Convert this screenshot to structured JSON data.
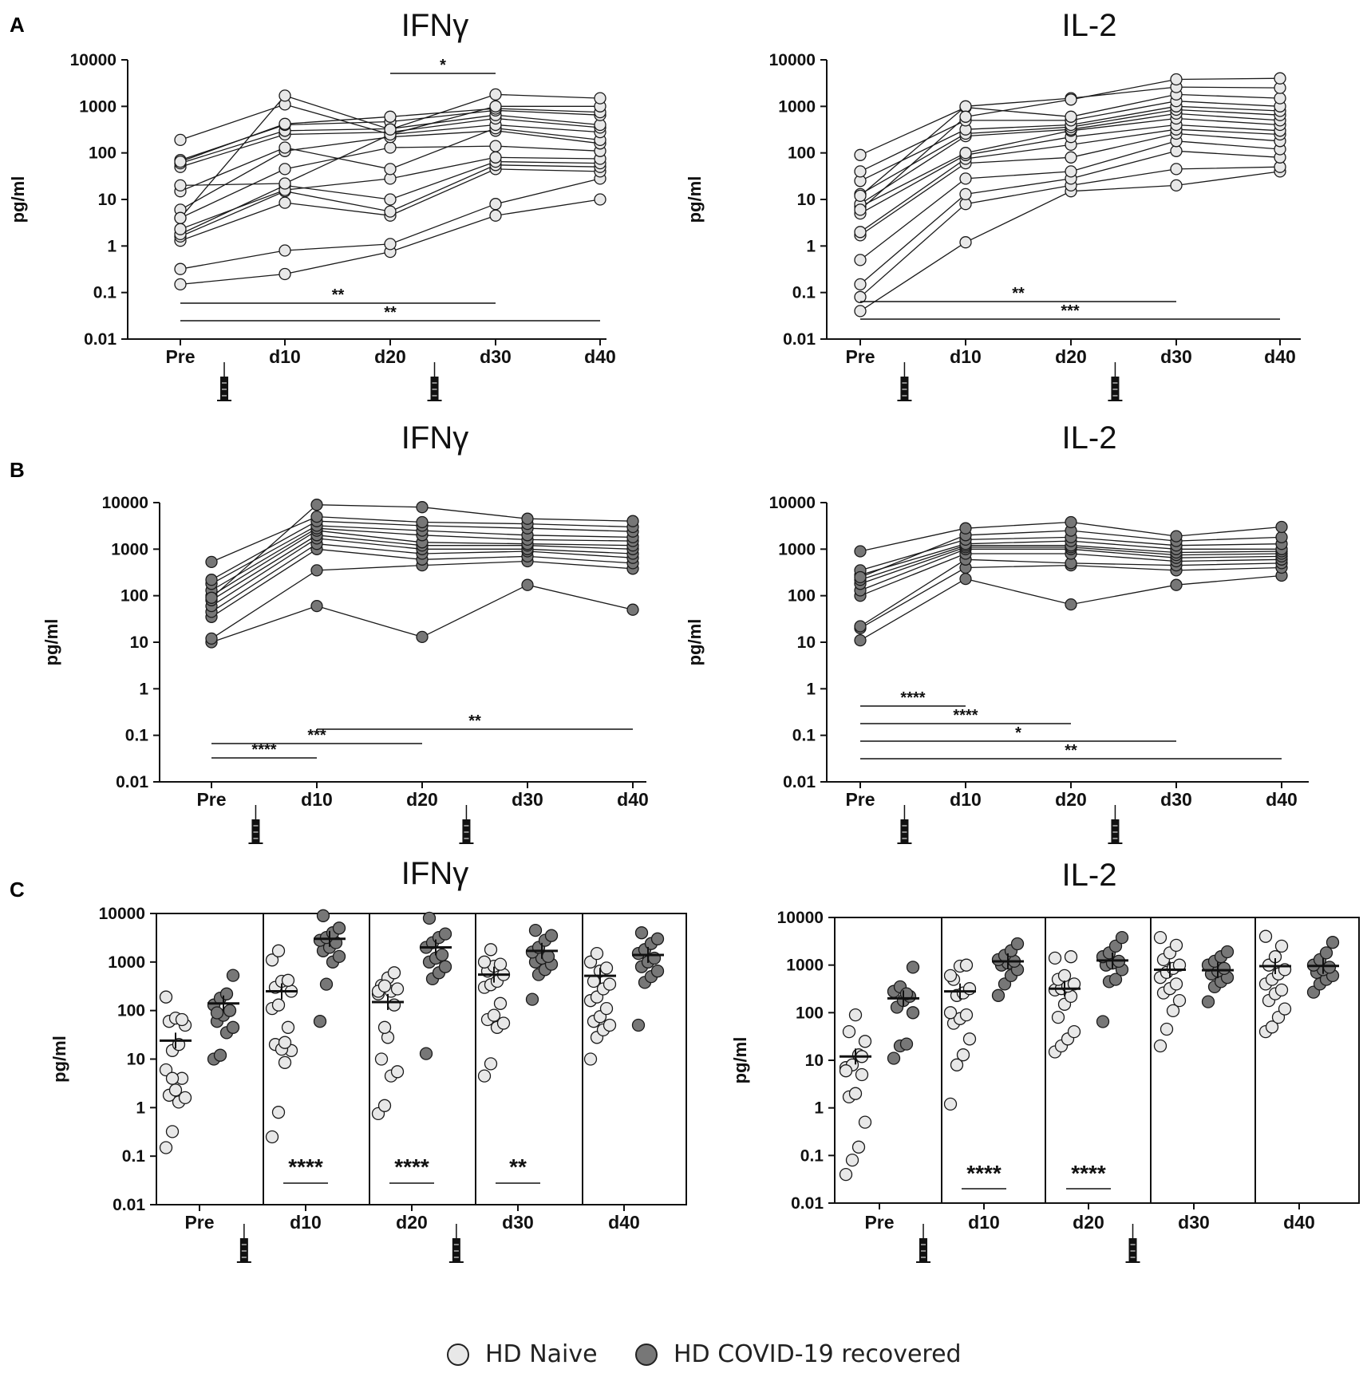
{
  "panel_labels": [
    "A",
    "B",
    "C"
  ],
  "x_categories": [
    "Pre",
    "d10",
    "d20",
    "d30",
    "d40"
  ],
  "colors": {
    "naive": "#e8e8e8",
    "recovered": "#777777",
    "stroke": "#1a1a1a"
  },
  "icons": {
    "vaccine": "syringe-icon"
  },
  "legend": {
    "naive_label": "HD Naive",
    "recovered_label": "HD COVID-19 recovered"
  },
  "chart_data": [
    {
      "id": "A-IFNg",
      "panel": "A",
      "type": "line",
      "title": "IFNγ",
      "ylabel": "pg/ml",
      "yscale": "log",
      "ylim": [
        0.01,
        10000
      ],
      "y_ticks": [
        "0.01",
        "0.1",
        "1",
        "10",
        "100",
        "1000",
        "10000"
      ],
      "categories": [
        "Pre",
        "d10",
        "d20",
        "d30",
        "d40"
      ],
      "group": "HD Naive",
      "vaccine_after": [
        "Pre",
        "d20"
      ],
      "series": [
        [
          0.15,
          0.25,
          0.75,
          4.5,
          10
        ],
        [
          0.32,
          0.8,
          1.1,
          8,
          28
        ],
        [
          1.3,
          8.5,
          4.5,
          45,
          40
        ],
        [
          1.6,
          15,
          5.5,
          55,
          50
        ],
        [
          1.8,
          20,
          10,
          65,
          60
        ],
        [
          2.3,
          16,
          28,
          80,
          75
        ],
        [
          4,
          45,
          130,
          140,
          110
        ],
        [
          6,
          110,
          220,
          300,
          160
        ],
        [
          15,
          130,
          45,
          340,
          190
        ],
        [
          20,
          22,
          250,
          400,
          280
        ],
        [
          50,
          250,
          280,
          550,
          350
        ],
        [
          60,
          300,
          330,
          650,
          400
        ],
        [
          70,
          400,
          470,
          820,
          650
        ],
        [
          65,
          420,
          600,
          900,
          750
        ],
        [
          190,
          1100,
          250,
          1000,
          1000
        ],
        [
          4,
          1700,
          320,
          1800,
          1500
        ]
      ],
      "significance": [
        {
          "from": "Pre",
          "to": "d30",
          "label": "**"
        },
        {
          "from": "Pre",
          "to": "d40",
          "label": "**"
        },
        {
          "from": "d20",
          "to": "d30",
          "label": "*"
        }
      ]
    },
    {
      "id": "A-IL2",
      "panel": "A",
      "type": "line",
      "title": "IL-2",
      "ylabel": "pg/ml",
      "yscale": "log",
      "ylim": [
        0.01,
        10000
      ],
      "y_ticks": [
        "0.01",
        "0.1",
        "1",
        "10",
        "100",
        "1000",
        "10000"
      ],
      "categories": [
        "Pre",
        "d10",
        "d20",
        "d30",
        "d40"
      ],
      "group": "HD Naive",
      "vaccine_after": [
        "Pre",
        "d20"
      ],
      "series": [
        [
          0.04,
          1.2,
          15,
          20,
          40
        ],
        [
          0.08,
          8,
          20,
          45,
          50
        ],
        [
          0.15,
          13,
          28,
          110,
          80
        ],
        [
          0.5,
          28,
          40,
          180,
          120
        ],
        [
          1.7,
          60,
          80,
          260,
          180
        ],
        [
          2,
          75,
          150,
          320,
          250
        ],
        [
          5,
          90,
          220,
          400,
          300
        ],
        [
          7,
          100,
          300,
          550,
          400
        ],
        [
          8,
          230,
          320,
          700,
          500
        ],
        [
          13,
          260,
          360,
          850,
          650
        ],
        [
          25,
          320,
          400,
          1000,
          800
        ],
        [
          40,
          500,
          500,
          1300,
          1000
        ],
        [
          90,
          950,
          600,
          1800,
          1500
        ],
        [
          12,
          1000,
          1500,
          2600,
          2500
        ],
        [
          6,
          600,
          1400,
          3800,
          4000
        ]
      ],
      "significance": [
        {
          "from": "Pre",
          "to": "d30",
          "label": "**"
        },
        {
          "from": "Pre",
          "to": "d40",
          "label": "***"
        }
      ]
    },
    {
      "id": "B-IFNg",
      "panel": "B",
      "type": "line",
      "title": "IFNγ",
      "ylabel": "pg/ml",
      "yscale": "log",
      "ylim": [
        0.01,
        10000
      ],
      "y_ticks": [
        "0.01",
        "0.1",
        "1",
        "10",
        "100",
        "1000",
        "10000"
      ],
      "categories": [
        "Pre",
        "d10",
        "d20",
        "d30",
        "d40"
      ],
      "group": "HD COVID-19 recovered",
      "vaccine_after": [
        "Pre",
        "d20"
      ],
      "series": [
        [
          10,
          60,
          13,
          170,
          50
        ],
        [
          12,
          350,
          450,
          550,
          380
        ],
        [
          35,
          1000,
          600,
          700,
          500
        ],
        [
          45,
          1300,
          800,
          900,
          650
        ],
        [
          60,
          1700,
          1000,
          1000,
          800
        ],
        [
          80,
          2000,
          1200,
          1200,
          1000
        ],
        [
          100,
          2500,
          1400,
          1300,
          1200
        ],
        [
          130,
          2800,
          2000,
          1600,
          1500
        ],
        [
          180,
          3200,
          2500,
          2000,
          1800
        ],
        [
          220,
          4000,
          3200,
          2800,
          2400
        ],
        [
          530,
          5000,
          3800,
          3500,
          3000
        ],
        [
          90,
          9000,
          8000,
          4500,
          4000
        ]
      ],
      "significance": [
        {
          "from": "Pre",
          "to": "d10",
          "label": "****"
        },
        {
          "from": "Pre",
          "to": "d20",
          "label": "***"
        },
        {
          "from": "d10",
          "to": "d40",
          "label": "**"
        }
      ]
    },
    {
      "id": "B-IL2",
      "panel": "B",
      "type": "line",
      "title": "IL-2",
      "ylabel": "pg/ml",
      "yscale": "log",
      "ylim": [
        0.01,
        10000
      ],
      "y_ticks": [
        "0.01",
        "0.1",
        "1",
        "10",
        "100",
        "1000",
        "10000"
      ],
      "categories": [
        "Pre",
        "d10",
        "d20",
        "d30",
        "d40"
      ],
      "group": "HD COVID-19 recovered",
      "vaccine_after": [
        "Pre",
        "d20"
      ],
      "series": [
        [
          11,
          230,
          65,
          170,
          270
        ],
        [
          20,
          400,
          450,
          350,
          400
        ],
        [
          22,
          600,
          500,
          450,
          500
        ],
        [
          100,
          800,
          800,
          550,
          600
        ],
        [
          130,
          1000,
          1000,
          650,
          700
        ],
        [
          180,
          1100,
          1100,
          750,
          800
        ],
        [
          220,
          1200,
          1200,
          850,
          900
        ],
        [
          280,
          1300,
          1500,
          1000,
          1000
        ],
        [
          350,
          1600,
          1800,
          1200,
          1300
        ],
        [
          250,
          2000,
          2500,
          1500,
          1800
        ],
        [
          900,
          2800,
          3800,
          1900,
          3000
        ]
      ],
      "significance": [
        {
          "from": "Pre",
          "to": "d10",
          "label": "****"
        },
        {
          "from": "Pre",
          "to": "d20",
          "label": "****"
        },
        {
          "from": "Pre",
          "to": "d30",
          "label": "*"
        },
        {
          "from": "Pre",
          "to": "d40",
          "label": "**"
        }
      ]
    },
    {
      "id": "C-IFNg",
      "panel": "C",
      "type": "scatter",
      "title": "IFNγ",
      "ylabel": "pg/ml",
      "yscale": "log",
      "ylim": [
        0.01,
        10000
      ],
      "y_ticks": [
        "0.01",
        "0.1",
        "1",
        "10",
        "100",
        "1000",
        "10000"
      ],
      "categories": [
        "Pre",
        "d10",
        "d20",
        "d30",
        "d40"
      ],
      "vaccine_after": [
        "Pre",
        "d20"
      ],
      "groups": [
        {
          "name": "HD Naive",
          "values": [
            [
              0.15,
              0.32,
              1.3,
              1.6,
              1.8,
              2.3,
              4,
              6,
              15,
              20,
              50,
              60,
              70,
              65,
              190,
              4
            ],
            [
              0.25,
              0.8,
              8.5,
              15,
              20,
              16,
              45,
              110,
              130,
              22,
              250,
              300,
              400,
              420,
              1100,
              1700
            ],
            [
              0.75,
              1.1,
              4.5,
              5.5,
              10,
              28,
              130,
              220,
              45,
              250,
              280,
              330,
              470,
              600,
              250,
              320
            ],
            [
              4.5,
              8,
              45,
              55,
              65,
              80,
              140,
              300,
              340,
              400,
              550,
              650,
              820,
              900,
              1000,
              1800
            ],
            [
              10,
              28,
              40,
              50,
              60,
              75,
              110,
              160,
              190,
              280,
              350,
              400,
              650,
              750,
              1000,
              1500
            ]
          ],
          "means": [
            24,
            250,
            150,
            550,
            520
          ]
        },
        {
          "name": "HD COVID-19 recovered",
          "values": [
            [
              10,
              12,
              35,
              45,
              60,
              80,
              100,
              130,
              180,
              220,
              530,
              90
            ],
            [
              60,
              350,
              1000,
              1300,
              1700,
              2000,
              2500,
              2800,
              3200,
              4000,
              5000,
              9000
            ],
            [
              13,
              450,
              600,
              800,
              1000,
              1200,
              1400,
              2000,
              2500,
              3200,
              3800,
              8000
            ],
            [
              170,
              550,
              700,
              900,
              1000,
              1200,
              1300,
              1600,
              2000,
              2800,
              3500,
              4500
            ],
            [
              50,
              380,
              500,
              650,
              800,
              1000,
              1200,
              1500,
              1800,
              2400,
              3000,
              4000
            ]
          ],
          "means": [
            140,
            3000,
            2000,
            1700,
            1400
          ]
        }
      ],
      "significance": [
        {
          "at": "d10",
          "label": "****"
        },
        {
          "at": "d20",
          "label": "****"
        },
        {
          "at": "d30",
          "label": "**"
        }
      ]
    },
    {
      "id": "C-IL2",
      "panel": "C",
      "type": "scatter",
      "title": "IL-2",
      "ylabel": "pg/ml",
      "yscale": "log",
      "ylim": [
        0.01,
        10000
      ],
      "y_ticks": [
        "0.01",
        "0.1",
        "1",
        "10",
        "100",
        "1000",
        "10000"
      ],
      "categories": [
        "Pre",
        "d10",
        "d20",
        "d30",
        "d40"
      ],
      "vaccine_after": [
        "Pre",
        "d20"
      ],
      "groups": [
        {
          "name": "HD Naive",
          "values": [
            [
              0.04,
              0.08,
              0.15,
              0.5,
              1.7,
              2,
              5,
              7,
              8,
              13,
              25,
              40,
              90,
              12,
              6
            ],
            [
              1.2,
              8,
              13,
              28,
              60,
              75,
              90,
              100,
              230,
              260,
              320,
              500,
              950,
              1000,
              600
            ],
            [
              15,
              20,
              28,
              40,
              80,
              150,
              220,
              300,
              320,
              360,
              400,
              500,
              600,
              1500,
              1400
            ],
            [
              20,
              45,
              110,
              180,
              260,
              320,
              400,
              550,
              700,
              850,
              1000,
              1300,
              1800,
              2600,
              3800
            ],
            [
              40,
              50,
              80,
              120,
              180,
              250,
              300,
              400,
              500,
              650,
              800,
              1000,
              1500,
              2500,
              4000
            ]
          ],
          "means": [
            12,
            280,
            320,
            800,
            950
          ]
        },
        {
          "name": "HD COVID-19 recovered",
          "values": [
            [
              11,
              20,
              22,
              100,
              130,
              180,
              220,
              280,
              350,
              250,
              900
            ],
            [
              230,
              400,
              600,
              800,
              1000,
              1100,
              1200,
              1300,
              1600,
              2000,
              2800
            ],
            [
              65,
              450,
              500,
              800,
              1000,
              1100,
              1200,
              1500,
              1800,
              2500,
              3800
            ],
            [
              170,
              350,
              450,
              550,
              650,
              750,
              850,
              1000,
              1200,
              1500,
              1900
            ],
            [
              270,
              400,
              500,
              600,
              700,
              800,
              900,
              1000,
              1300,
              1800,
              3000
            ]
          ],
          "means": [
            200,
            1200,
            1250,
            780,
            960
          ]
        }
      ],
      "significance": [
        {
          "at": "d10",
          "label": "****"
        },
        {
          "at": "d20",
          "label": "****"
        }
      ]
    }
  ]
}
